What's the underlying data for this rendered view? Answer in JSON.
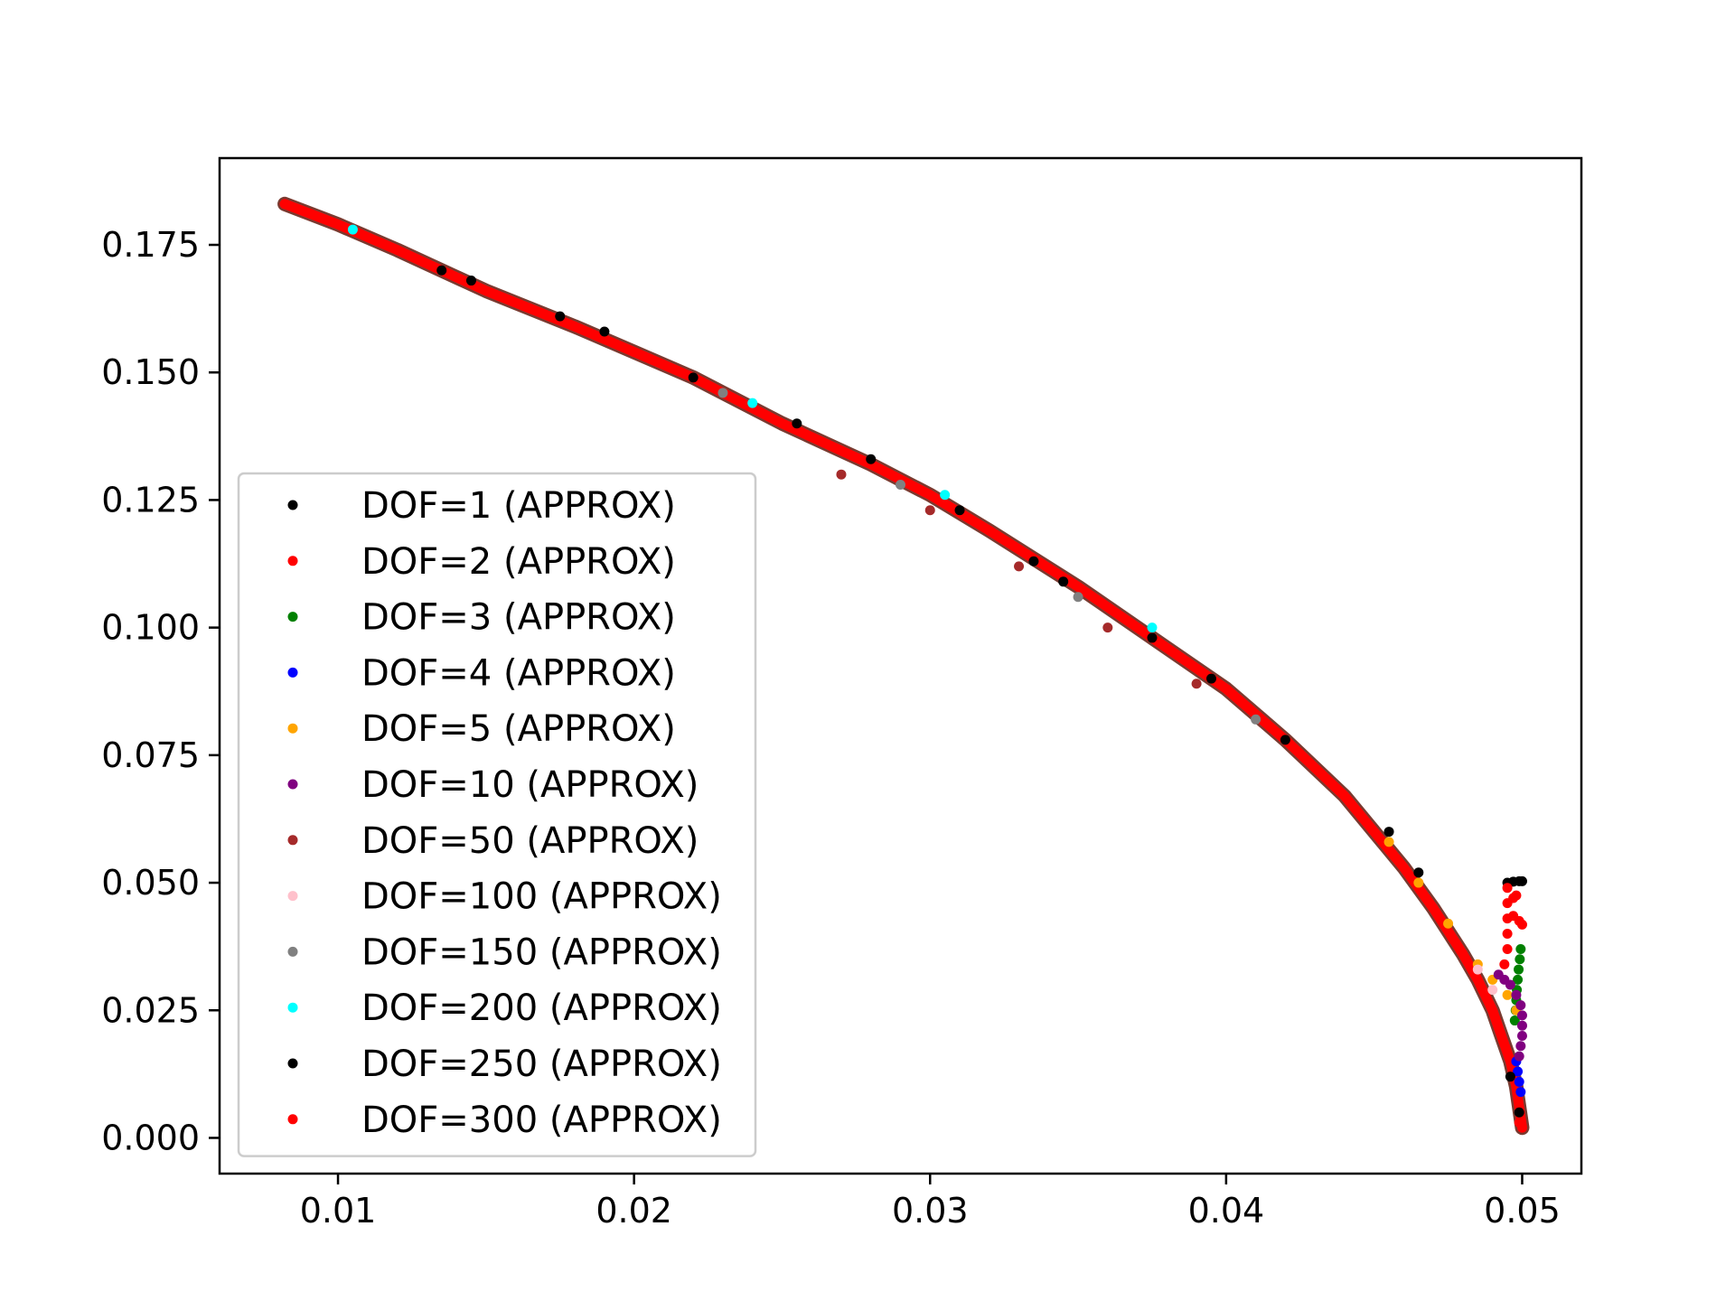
{
  "chart_data": {
    "type": "scatter",
    "title": "",
    "xlabel": "",
    "ylabel": "",
    "xlim": [
      0.006,
      0.052
    ],
    "ylim": [
      -0.007,
      0.192
    ],
    "grid": false,
    "legend_position": "lower-left",
    "x_ticks": [
      {
        "value": 0.01,
        "label": "0.01"
      },
      {
        "value": 0.02,
        "label": "0.02"
      },
      {
        "value": 0.03,
        "label": "0.03"
      },
      {
        "value": 0.04,
        "label": "0.04"
      },
      {
        "value": 0.05,
        "label": "0.05"
      }
    ],
    "y_ticks": [
      {
        "value": 0.0,
        "label": "0.000"
      },
      {
        "value": 0.025,
        "label": "0.025"
      },
      {
        "value": 0.05,
        "label": "0.050"
      },
      {
        "value": 0.075,
        "label": "0.075"
      },
      {
        "value": 0.1,
        "label": "0.100"
      },
      {
        "value": 0.125,
        "label": "0.125"
      },
      {
        "value": 0.15,
        "label": "0.150"
      },
      {
        "value": 0.175,
        "label": "0.175"
      }
    ],
    "main_curve": {
      "x": [
        0.0082,
        0.01,
        0.012,
        0.015,
        0.018,
        0.02,
        0.022,
        0.025,
        0.028,
        0.03,
        0.032,
        0.035,
        0.038,
        0.04,
        0.042,
        0.044,
        0.045,
        0.046,
        0.047,
        0.048,
        0.0485,
        0.049,
        0.0493,
        0.0496,
        0.0498,
        0.0499,
        0.05
      ],
      "y": [
        0.183,
        0.179,
        0.174,
        0.166,
        0.159,
        0.154,
        0.149,
        0.14,
        0.132,
        0.126,
        0.119,
        0.108,
        0.096,
        0.088,
        0.078,
        0.067,
        0.06,
        0.053,
        0.045,
        0.036,
        0.031,
        0.025,
        0.02,
        0.015,
        0.01,
        0.006,
        0.002
      ]
    },
    "series": [
      {
        "name": "DOF=1 (APPROX)",
        "color": "#000000",
        "points": [
          [
            0.0135,
            0.17
          ],
          [
            0.0175,
            0.161
          ],
          [
            0.019,
            0.158
          ],
          [
            0.0255,
            0.14
          ],
          [
            0.031,
            0.123
          ],
          [
            0.0345,
            0.109
          ],
          [
            0.0375,
            0.098
          ],
          [
            0.042,
            0.078
          ],
          [
            0.0455,
            0.06
          ],
          [
            0.0495,
            0.05
          ],
          [
            0.0497,
            0.0502
          ],
          [
            0.0499,
            0.0503
          ],
          [
            0.05,
            0.0503
          ]
        ]
      },
      {
        "name": "DOF=2 (APPROX)",
        "color": "#ff0000",
        "points": [
          [
            0.0495,
            0.049
          ],
          [
            0.0495,
            0.046
          ],
          [
            0.0495,
            0.043
          ],
          [
            0.0495,
            0.04
          ],
          [
            0.0495,
            0.037
          ],
          [
            0.0494,
            0.034
          ],
          [
            0.0497,
            0.0435
          ],
          [
            0.0499,
            0.0425
          ],
          [
            0.05,
            0.0418
          ],
          [
            0.0497,
            0.047
          ],
          [
            0.0498,
            0.0475
          ]
        ]
      },
      {
        "name": "DOF=3 (APPROX)",
        "color": "#008000",
        "points": [
          [
            0.04995,
            0.037
          ],
          [
            0.04992,
            0.035
          ],
          [
            0.04988,
            0.033
          ],
          [
            0.04985,
            0.031
          ],
          [
            0.04982,
            0.029
          ],
          [
            0.0498,
            0.027
          ],
          [
            0.04978,
            0.025
          ],
          [
            0.04975,
            0.023
          ]
        ]
      },
      {
        "name": "DOF=4 (APPROX)",
        "color": "#0000ff",
        "points": [
          [
            0.0498,
            0.015
          ],
          [
            0.04985,
            0.013
          ],
          [
            0.0499,
            0.011
          ],
          [
            0.04995,
            0.009
          ]
        ]
      },
      {
        "name": "DOF=5 (APPROX)",
        "color": "#ffa500",
        "points": [
          [
            0.0455,
            0.058
          ],
          [
            0.0465,
            0.05
          ],
          [
            0.0475,
            0.042
          ],
          [
            0.0485,
            0.034
          ],
          [
            0.049,
            0.031
          ],
          [
            0.0495,
            0.028
          ],
          [
            0.0498,
            0.025
          ]
        ]
      },
      {
        "name": "DOF=10 (APPROX)",
        "color": "#800080",
        "points": [
          [
            0.0492,
            0.032
          ],
          [
            0.0494,
            0.031
          ],
          [
            0.0496,
            0.03
          ],
          [
            0.0498,
            0.028
          ],
          [
            0.04995,
            0.026
          ],
          [
            0.05,
            0.024
          ],
          [
            0.05,
            0.022
          ],
          [
            0.05,
            0.02
          ],
          [
            0.04995,
            0.018
          ],
          [
            0.0499,
            0.016
          ]
        ]
      },
      {
        "name": "DOF=50 (APPROX)",
        "color": "#a52a2a",
        "points": [
          [
            0.027,
            0.13
          ],
          [
            0.03,
            0.123
          ],
          [
            0.033,
            0.112
          ],
          [
            0.036,
            0.1
          ],
          [
            0.039,
            0.089
          ]
        ]
      },
      {
        "name": "DOF=100 (APPROX)",
        "color": "#ffc0cb",
        "points": [
          [
            0.0485,
            0.033
          ],
          [
            0.049,
            0.029
          ]
        ]
      },
      {
        "name": "DOF=150 (APPROX)",
        "color": "#808080",
        "points": [
          [
            0.023,
            0.146
          ],
          [
            0.029,
            0.128
          ],
          [
            0.035,
            0.106
          ],
          [
            0.041,
            0.082
          ]
        ]
      },
      {
        "name": "DOF=200 (APPROX)",
        "color": "#00ffff",
        "points": [
          [
            0.0105,
            0.178
          ],
          [
            0.024,
            0.144
          ],
          [
            0.0305,
            0.126
          ],
          [
            0.0375,
            0.1
          ]
        ]
      },
      {
        "name": "DOF=250 (APPROX)",
        "color": "#000000",
        "points": [
          [
            0.0145,
            0.168
          ],
          [
            0.022,
            0.149
          ],
          [
            0.028,
            0.133
          ],
          [
            0.0335,
            0.113
          ],
          [
            0.0395,
            0.09
          ],
          [
            0.0465,
            0.052
          ],
          [
            0.0496,
            0.012
          ],
          [
            0.0499,
            0.005
          ]
        ]
      },
      {
        "name": "DOF=300 (APPROX)",
        "color": "#ff0000",
        "points": [
          [
            0.0082,
            0.183
          ],
          [
            0.012,
            0.174
          ],
          [
            0.02,
            0.154
          ],
          [
            0.032,
            0.119
          ],
          [
            0.044,
            0.067
          ],
          [
            0.0499,
            0.003
          ]
        ]
      }
    ]
  }
}
